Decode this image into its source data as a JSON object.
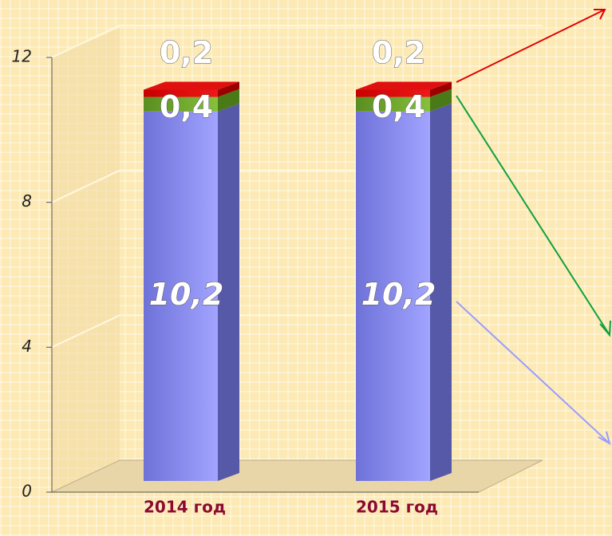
{
  "chart_data": {
    "type": "bar",
    "stacked": true,
    "categories": [
      "2014 год",
      "2015 год"
    ],
    "series": [
      {
        "color": "#8f92f5",
        "values": [
          10.2,
          10.2
        ],
        "value_labels": [
          "10,2",
          "10,2"
        ]
      },
      {
        "color": "#6ea62c",
        "values": [
          0.4,
          0.4
        ],
        "value_labels": [
          "0,4",
          "0,4"
        ]
      },
      {
        "color": "#e01010",
        "values": [
          0.2,
          0.2
        ],
        "value_labels": [
          "0,2",
          "0,2"
        ]
      }
    ],
    "ylim": [
      0,
      12
    ],
    "yticks": [
      0,
      4,
      8,
      12
    ],
    "grid": true
  }
}
